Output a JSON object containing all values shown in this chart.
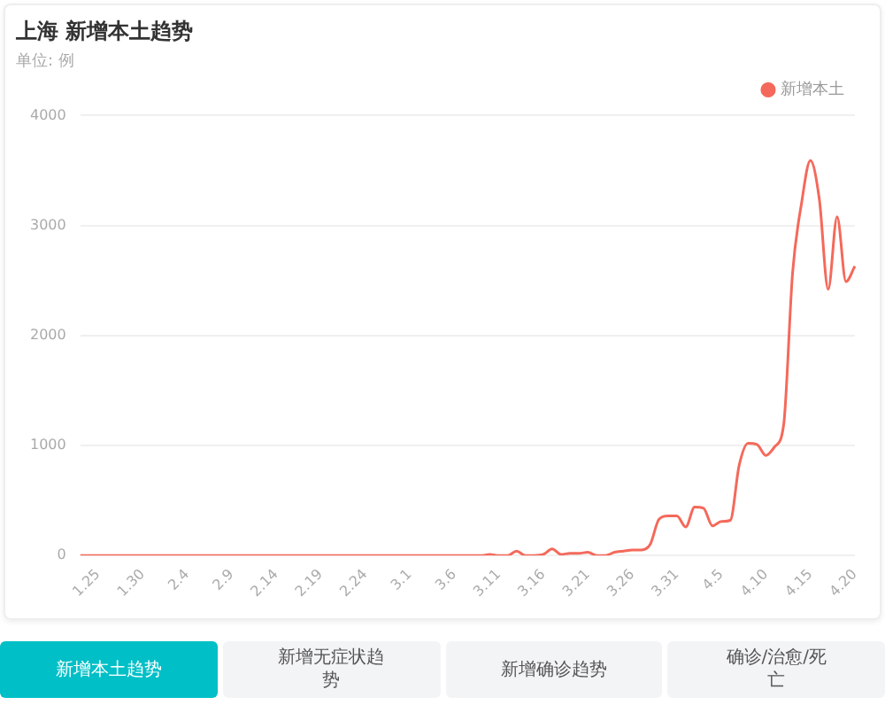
{
  "chart_data": {
    "type": "line",
    "title": "上海 新增本土趋势",
    "subtitle": "单位: 例",
    "categories": [
      null,
      null,
      "1.25",
      null,
      null,
      null,
      null,
      "1.30",
      null,
      null,
      null,
      null,
      "2.4",
      null,
      null,
      null,
      null,
      "2.9",
      null,
      null,
      null,
      null,
      "2.14",
      null,
      null,
      null,
      null,
      "2.19",
      null,
      null,
      null,
      null,
      "2.24",
      null,
      null,
      null,
      null,
      "3.1",
      null,
      null,
      null,
      null,
      "3.6",
      null,
      null,
      null,
      null,
      "3.11",
      null,
      null,
      null,
      null,
      "3.16",
      null,
      null,
      null,
      null,
      "3.21",
      null,
      null,
      null,
      null,
      "3.26",
      null,
      null,
      null,
      null,
      "3.31",
      null,
      null,
      null,
      null,
      "4.5",
      null,
      null,
      null,
      null,
      "4.10",
      null,
      null,
      null,
      null,
      "4.15",
      null,
      null,
      null,
      null,
      "4.20"
    ],
    "series": [
      {
        "name": "新增本土",
        "color": "#f4695b",
        "values": [
          0,
          0,
          0,
          0,
          0,
          0,
          0,
          0,
          0,
          0,
          0,
          0,
          0,
          0,
          0,
          0,
          0,
          0,
          0,
          0,
          0,
          0,
          0,
          0,
          0,
          0,
          0,
          0,
          0,
          0,
          0,
          0,
          0,
          0,
          0,
          0,
          0,
          0,
          0,
          0,
          0,
          0,
          0,
          0,
          0,
          0,
          10,
          0,
          0,
          40,
          0,
          0,
          10,
          60,
          10,
          20,
          20,
          30,
          0,
          0,
          30,
          40,
          50,
          50,
          100,
          330,
          360,
          360,
          260,
          440,
          430,
          270,
          310,
          320,
          820,
          1020,
          1010,
          910,
          990,
          1190,
          2570,
          3200,
          3590,
          3240,
          2420,
          3080,
          2490,
          2630
        ]
      }
    ],
    "ylim": [
      0,
      4000
    ],
    "yticks": [
      0,
      1000,
      2000,
      3000,
      4000
    ],
    "grid": "y",
    "legend": "top right",
    "marker": "none",
    "line_style": "solid",
    "annotations": [
      "新增本土趋势",
      "新增无症状趋势",
      "新增确诊趋势",
      "确诊/治愈/死亡"
    ]
  }
}
